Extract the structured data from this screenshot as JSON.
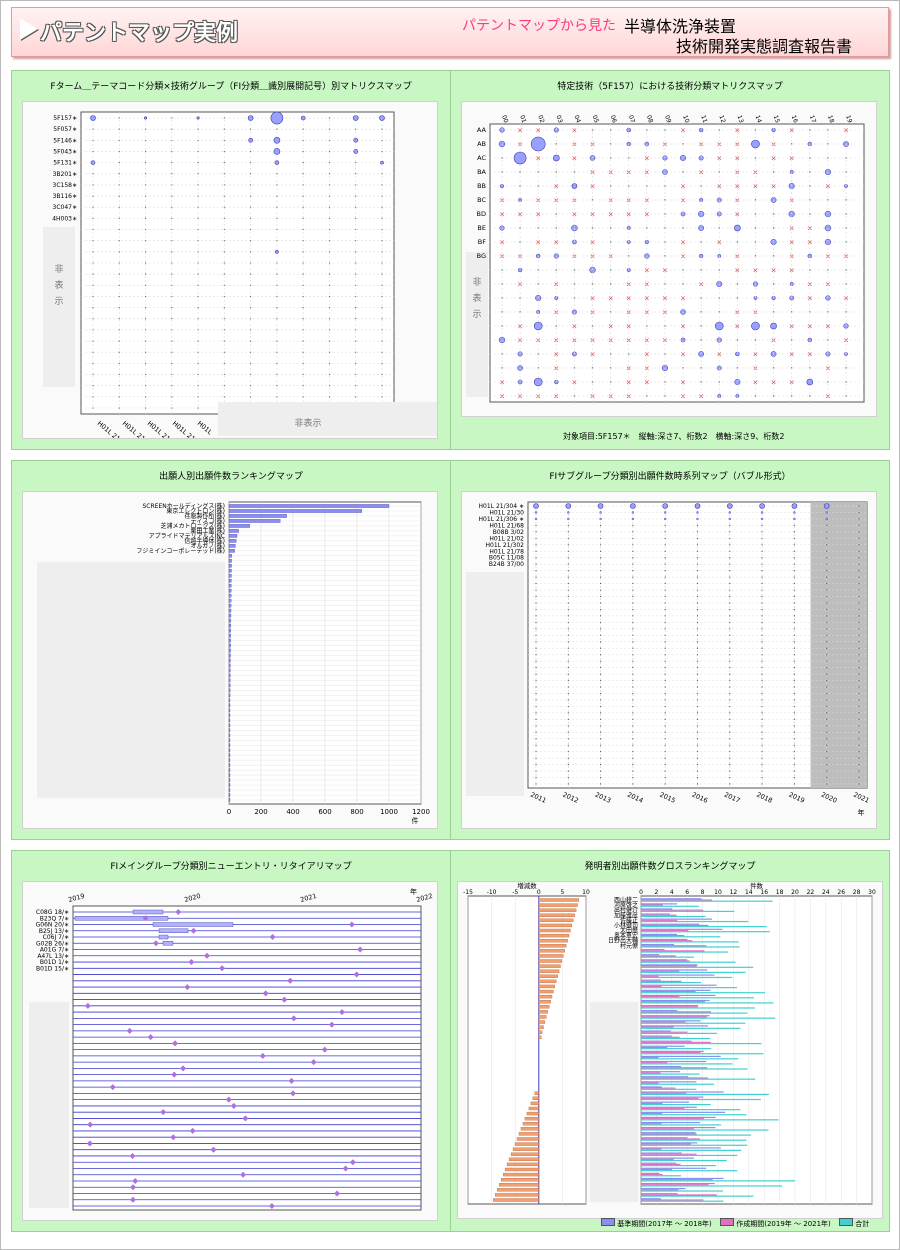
{
  "header": {
    "title": "パテントマップ実例",
    "subtitle": "パテントマップから見た",
    "title_right_1": "半導体洗浄装置",
    "title_right_2": "技術開発実態調査報告書"
  },
  "hidden_label": "非表示",
  "hidden_label_v": [
    "非",
    "表",
    "示"
  ],
  "chart_data": [
    {
      "type": "scatter",
      "title": "Fターム＿テーマコード分類×技術グループ（FI分類＿識別展開記号）別マトリクスマップ",
      "y_categories": [
        "5F157∗",
        "5F057∗",
        "5F146∗",
        "5F043∗",
        "5F131∗",
        "3B201∗",
        "3C158∗",
        "3B116∗",
        "3C047∗",
        "4H003∗"
      ],
      "x_categories": [
        "H01L 21/304",
        "H01L 21/304 648A",
        "H01L 21/304 648B",
        "H01L 21/304 648C",
        "H01L"
      ],
      "hidden_label": "非表示"
    },
    {
      "type": "scatter",
      "title": "特定技術（5F157）における技術分類マトリクスマップ",
      "x_categories": [
        "00",
        "01",
        "02",
        "03",
        "04",
        "05",
        "06",
        "07",
        "08",
        "09",
        "10",
        "11",
        "12",
        "13",
        "14",
        "15",
        "16",
        "17",
        "18",
        "19"
      ],
      "y_categories": [
        "AA",
        "AB",
        "AC",
        "BA",
        "BB",
        "BC",
        "BD",
        "BE",
        "BF",
        "BG"
      ],
      "footnote": "対象項目:5F157＊　縦軸:深さ7、桁数2　横軸:深さ9、桁数2"
    },
    {
      "type": "bar",
      "title": "出願人別出願件数ランキングマップ",
      "categories": [
        "SCREENホールディングス(株)",
        "東京エレクトロン(株)",
        "荏原製作所(株)",
        "ディスコ(株)",
        "芝浦メカトロニクス(株)",
        "栗田工業(株)",
        "アプライドマテリアルズINC",
        "信越半導体(株)",
        "オルガノ(株)",
        "フジミインコーポレーテッド(株)"
      ],
      "values": [
        1000,
        830,
        360,
        320,
        130,
        60,
        50,
        45,
        40,
        35
      ],
      "x_ticks": [
        "0",
        "200",
        "400",
        "600",
        "800",
        "1000",
        "1200"
      ],
      "xlabel": "件",
      "xlim": [
        0,
        1200
      ]
    },
    {
      "type": "scatter",
      "title": "FIサブグループ分類別出願件数時系列マップ（バブル形式）",
      "y_categories": [
        "H01L 21/304 ∗",
        "H01L 21/30",
        "H01L 21/306 ∗",
        "H01L 21/68",
        "B08B 3/02",
        "H01L 21/02",
        "H01L 21/302",
        "H01L 21/78",
        "B05C 11/08",
        "B24B 37/00"
      ],
      "x_categories": [
        "2011",
        "2012",
        "2013",
        "2014",
        "2015",
        "2016",
        "2017",
        "2018",
        "2019",
        "2020",
        "2021"
      ],
      "xlabel": "年"
    },
    {
      "type": "scatter",
      "title": "FIメイングループ分類別ニューエントリ・リタイアリマップ",
      "y_categories": [
        "C08G 18/∗",
        "B23Q 7/∗",
        "G06N 20/∗",
        "B25J 13/∗",
        "C06J 7/∗",
        "G02B 26/∗",
        "A01G 7/∗",
        "A47L 13/∗",
        "B01D 1/∗",
        "B01D 15/∗"
      ],
      "x_ticks": [
        "2019",
        "2020",
        "2021",
        "2022"
      ],
      "xlabel": "年"
    },
    {
      "type": "bar",
      "title": "発明者別出願件数グロスランキングマップ",
      "categories": [
        "西山耕二",
        "河原啓之",
        "出村健介",
        "加藤雅彦",
        "佐藤正",
        "小林健司",
        "太田喬",
        "奥本恵宏",
        "日野出大輔",
        "村元僚"
      ],
      "left_axis": {
        "label": "増減数",
        "ticks": [
          "-15",
          "-10",
          "-5",
          "0",
          "5",
          "10"
        ]
      },
      "right_axis": {
        "label": "件数",
        "ticks": [
          "0",
          "2",
          "4",
          "6",
          "8",
          "10",
          "12",
          "14",
          "16",
          "18",
          "20",
          "22",
          "24",
          "26",
          "28",
          "30"
        ]
      },
      "legend": [
        "基準期間(2017年 ～ 2018年)",
        "作成期間(2019年 ～ 2021年)",
        "合計"
      ]
    }
  ],
  "colors": {
    "bubble": "#9aa0ff",
    "bubble_edge": "#3a3aa8",
    "cross": "#e03030",
    "bar": "#8b8ef0",
    "orange": "#f0a070",
    "pink": "#e070c0",
    "cyan": "#40d0d0",
    "diamond": "#b070e0",
    "panel_bg": "#c8f7c3"
  }
}
